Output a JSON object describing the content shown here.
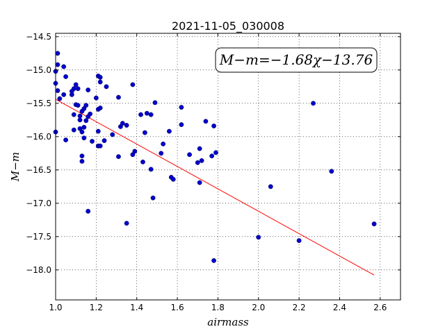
{
  "chart_data": {
    "type": "scatter",
    "title": "2021-11-05_030008",
    "xlabel": "airmass",
    "ylabel": "M−m",
    "xlim": [
      1.0,
      2.7
    ],
    "ylim": [
      -18.45,
      -14.45
    ],
    "y_inverted": true,
    "grid": true,
    "x_ticks": [
      "1.0",
      "1.2",
      "1.4",
      "1.6",
      "1.8",
      "2.0",
      "2.2",
      "2.4",
      "2.6"
    ],
    "y_ticks": [
      "−14.5",
      "−15.0",
      "−15.5",
      "−16.0",
      "−16.5",
      "−17.0",
      "−17.5",
      "−18.0"
    ],
    "annotation": "M−m=−1.68χ−13.76",
    "fit": {
      "slope": -1.68,
      "intercept": -13.76,
      "x_range": [
        1.0,
        2.57
      ],
      "color": "#ff0000"
    },
    "points_color": "#0000cc",
    "points": [
      [
        1.0,
        -15.02
      ],
      [
        1.0,
        -15.2
      ],
      [
        1.01,
        -14.75
      ],
      [
        1.01,
        -14.92
      ],
      [
        1.01,
        -15.31
      ],
      [
        1.02,
        -15.43
      ],
      [
        1.0,
        -15.93
      ],
      [
        1.04,
        -14.95
      ],
      [
        1.04,
        -15.37
      ],
      [
        1.05,
        -15.1
      ],
      [
        1.05,
        -16.05
      ],
      [
        1.08,
        -15.37
      ],
      [
        1.08,
        -15.32
      ],
      [
        1.09,
        -15.28
      ],
      [
        1.1,
        -15.22
      ],
      [
        1.09,
        -15.67
      ],
      [
        1.09,
        -15.9
      ],
      [
        1.1,
        -15.52
      ],
      [
        1.11,
        -15.28
      ],
      [
        1.11,
        -15.53
      ],
      [
        1.12,
        -15.69
      ],
      [
        1.12,
        -15.88
      ],
      [
        1.12,
        -15.75
      ],
      [
        1.13,
        -15.62
      ],
      [
        1.13,
        -15.93
      ],
      [
        1.14,
        -15.58
      ],
      [
        1.14,
        -15.86
      ],
      [
        1.13,
        -16.29
      ],
      [
        1.13,
        -16.37
      ],
      [
        1.14,
        -16.02
      ],
      [
        1.15,
        -15.53
      ],
      [
        1.16,
        -15.7
      ],
      [
        1.15,
        -15.76
      ],
      [
        1.16,
        -15.3
      ],
      [
        1.17,
        -15.66
      ],
      [
        1.18,
        -16.07
      ],
      [
        1.16,
        -17.12
      ],
      [
        1.2,
        -15.42
      ],
      [
        1.21,
        -15.09
      ],
      [
        1.22,
        -15.11
      ],
      [
        1.22,
        -15.18
      ],
      [
        1.21,
        -15.59
      ],
      [
        1.22,
        -15.57
      ],
      [
        1.21,
        -15.92
      ],
      [
        1.21,
        -16.14
      ],
      [
        1.22,
        -16.14
      ],
      [
        1.24,
        -16.06
      ],
      [
        1.25,
        -15.25
      ],
      [
        1.28,
        -15.97
      ],
      [
        1.31,
        -15.41
      ],
      [
        1.32,
        -15.85
      ],
      [
        1.33,
        -15.8
      ],
      [
        1.35,
        -15.83
      ],
      [
        1.31,
        -16.3
      ],
      [
        1.35,
        -17.3
      ],
      [
        1.38,
        -15.22
      ],
      [
        1.38,
        -16.27
      ],
      [
        1.39,
        -16.22
      ],
      [
        1.42,
        -15.67
      ],
      [
        1.44,
        -15.94
      ],
      [
        1.45,
        -15.65
      ],
      [
        1.43,
        -16.38
      ],
      [
        1.47,
        -15.67
      ],
      [
        1.47,
        -16.49
      ],
      [
        1.49,
        -15.49
      ],
      [
        1.48,
        -16.92
      ],
      [
        1.52,
        -16.25
      ],
      [
        1.53,
        -16.11
      ],
      [
        1.56,
        -15.92
      ],
      [
        1.57,
        -16.61
      ],
      [
        1.58,
        -16.64
      ],
      [
        1.62,
        -15.56
      ],
      [
        1.62,
        -15.82
      ],
      [
        1.66,
        -16.27
      ],
      [
        1.7,
        -16.39
      ],
      [
        1.71,
        -16.18
      ],
      [
        1.72,
        -16.36
      ],
      [
        1.71,
        -16.69
      ],
      [
        1.74,
        -15.77
      ],
      [
        1.77,
        -16.29
      ],
      [
        1.78,
        -15.84
      ],
      [
        1.79,
        -16.24
      ],
      [
        1.78,
        -17.86
      ],
      [
        2.0,
        -17.51
      ],
      [
        2.06,
        -16.75
      ],
      [
        2.2,
        -17.56
      ],
      [
        2.27,
        -15.5
      ],
      [
        2.36,
        -16.52
      ],
      [
        2.57,
        -17.31
      ]
    ]
  }
}
